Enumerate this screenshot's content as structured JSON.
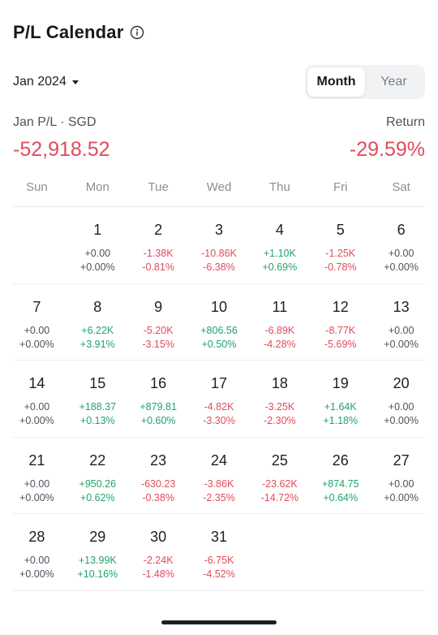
{
  "header": {
    "title": "P/L Calendar",
    "info_icon": "info-circle-icon"
  },
  "period": {
    "label": "Jan 2024",
    "caret_icon": "caret-down-icon"
  },
  "toggle": {
    "options": [
      "Month",
      "Year"
    ],
    "selected": "Month"
  },
  "summary": {
    "pl_label": "Jan P/L · SGD",
    "pl_value": "-52,918.52",
    "return_label": "Return",
    "return_value": "-29.59%"
  },
  "weekdays": [
    "Sun",
    "Mon",
    "Tue",
    "Wed",
    "Thu",
    "Fri",
    "Sat"
  ],
  "colors": {
    "positive": "#22a26b",
    "negative": "#e14b5a",
    "neutral": "#4d525b"
  },
  "weeks": [
    [
      null,
      {
        "day": "1",
        "abs": "+0.00",
        "pct": "+0.00%",
        "tone": "zero"
      },
      {
        "day": "2",
        "abs": "-1.38K",
        "pct": "-0.81%",
        "tone": "neg"
      },
      {
        "day": "3",
        "abs": "-10.86K",
        "pct": "-6.38%",
        "tone": "neg"
      },
      {
        "day": "4",
        "abs": "+1.10K",
        "pct": "+0.69%",
        "tone": "pos"
      },
      {
        "day": "5",
        "abs": "-1.25K",
        "pct": "-0.78%",
        "tone": "neg"
      },
      {
        "day": "6",
        "abs": "+0.00",
        "pct": "+0.00%",
        "tone": "zero"
      }
    ],
    [
      {
        "day": "7",
        "abs": "+0.00",
        "pct": "+0.00%",
        "tone": "zero"
      },
      {
        "day": "8",
        "abs": "+6.22K",
        "pct": "+3.91%",
        "tone": "pos"
      },
      {
        "day": "9",
        "abs": "-5.20K",
        "pct": "-3.15%",
        "tone": "neg"
      },
      {
        "day": "10",
        "abs": "+806.56",
        "pct": "+0.50%",
        "tone": "pos"
      },
      {
        "day": "11",
        "abs": "-6.89K",
        "pct": "-4.28%",
        "tone": "neg"
      },
      {
        "day": "12",
        "abs": "-8.77K",
        "pct": "-5.69%",
        "tone": "neg"
      },
      {
        "day": "13",
        "abs": "+0.00",
        "pct": "+0.00%",
        "tone": "zero"
      }
    ],
    [
      {
        "day": "14",
        "abs": "+0.00",
        "pct": "+0.00%",
        "tone": "zero"
      },
      {
        "day": "15",
        "abs": "+188.37",
        "pct": "+0.13%",
        "tone": "pos"
      },
      {
        "day": "16",
        "abs": "+879.81",
        "pct": "+0.60%",
        "tone": "pos"
      },
      {
        "day": "17",
        "abs": "-4.82K",
        "pct": "-3.30%",
        "tone": "neg"
      },
      {
        "day": "18",
        "abs": "-3.25K",
        "pct": "-2.30%",
        "tone": "neg"
      },
      {
        "day": "19",
        "abs": "+1.64K",
        "pct": "+1.18%",
        "tone": "pos"
      },
      {
        "day": "20",
        "abs": "+0.00",
        "pct": "+0.00%",
        "tone": "zero"
      }
    ],
    [
      {
        "day": "21",
        "abs": "+0.00",
        "pct": "+0.00%",
        "tone": "zero"
      },
      {
        "day": "22",
        "abs": "+950.26",
        "pct": "+0.62%",
        "tone": "pos"
      },
      {
        "day": "23",
        "abs": "-630.23",
        "pct": "-0.38%",
        "tone": "neg"
      },
      {
        "day": "24",
        "abs": "-3.86K",
        "pct": "-2.35%",
        "tone": "neg"
      },
      {
        "day": "25",
        "abs": "-23.62K",
        "pct": "-14.72%",
        "tone": "neg"
      },
      {
        "day": "26",
        "abs": "+874.75",
        "pct": "+0.64%",
        "tone": "pos"
      },
      {
        "day": "27",
        "abs": "+0.00",
        "pct": "+0.00%",
        "tone": "zero"
      }
    ],
    [
      {
        "day": "28",
        "abs": "+0.00",
        "pct": "+0.00%",
        "tone": "zero"
      },
      {
        "day": "29",
        "abs": "+13.99K",
        "pct": "+10.16%",
        "tone": "pos"
      },
      {
        "day": "30",
        "abs": "-2.24K",
        "pct": "-1.48%",
        "tone": "neg"
      },
      {
        "day": "31",
        "abs": "-6.75K",
        "pct": "-4.52%",
        "tone": "neg"
      },
      null,
      null,
      null
    ]
  ]
}
